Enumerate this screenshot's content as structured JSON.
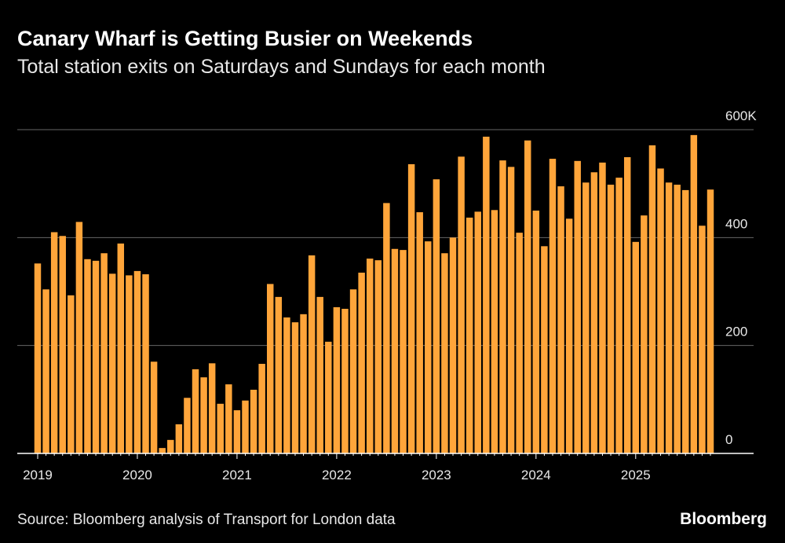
{
  "chart_data": {
    "type": "bar",
    "title": "Canary Wharf is Getting Busier on Weekends",
    "subtitle": "Total station exits on Saturdays and Sundays for each month",
    "source": "Source: Bloomberg analysis of Transport for London data",
    "brand": "Bloomberg",
    "color": "#ffa53a",
    "grid": true,
    "categories": [
      "2019",
      null,
      null,
      null,
      null,
      null,
      null,
      null,
      null,
      null,
      null,
      null,
      "2020",
      null,
      null,
      null,
      null,
      null,
      null,
      null,
      null,
      null,
      null,
      null,
      "2021",
      null,
      null,
      null,
      null,
      null,
      null,
      null,
      null,
      null,
      null,
      null,
      "2022",
      null,
      null,
      null,
      null,
      null,
      null,
      null,
      null,
      null,
      null,
      null,
      "2023",
      null,
      null,
      null,
      null,
      null,
      null,
      null,
      null,
      null,
      null,
      null,
      "2024",
      null,
      null,
      null,
      null,
      null,
      null,
      null,
      null,
      null,
      null,
      null,
      "2025",
      null,
      null,
      null,
      null,
      null,
      null,
      null,
      null,
      null
    ],
    "values": [
      352,
      304,
      410,
      403,
      293,
      429,
      360,
      357,
      371,
      333,
      389,
      330,
      338,
      332,
      170,
      10,
      25,
      54,
      103,
      156,
      141,
      167,
      92,
      128,
      80,
      98,
      118,
      166,
      314,
      290,
      252,
      243,
      258,
      367,
      290,
      207,
      271,
      268,
      304,
      335,
      361,
      358,
      464,
      379,
      377,
      536,
      447,
      393,
      508,
      371,
      400,
      550,
      437,
      448,
      587,
      451,
      543,
      531,
      409,
      580,
      450,
      384,
      546,
      495,
      435,
      542,
      502,
      521,
      539,
      498,
      511,
      549,
      392,
      441,
      571,
      528,
      502,
      498,
      488,
      590,
      422,
      489
    ],
    "ylim": [
      0,
      600
    ],
    "yticks": [
      0,
      200,
      400,
      {
        "value": 600,
        "label": "600K"
      }
    ]
  }
}
